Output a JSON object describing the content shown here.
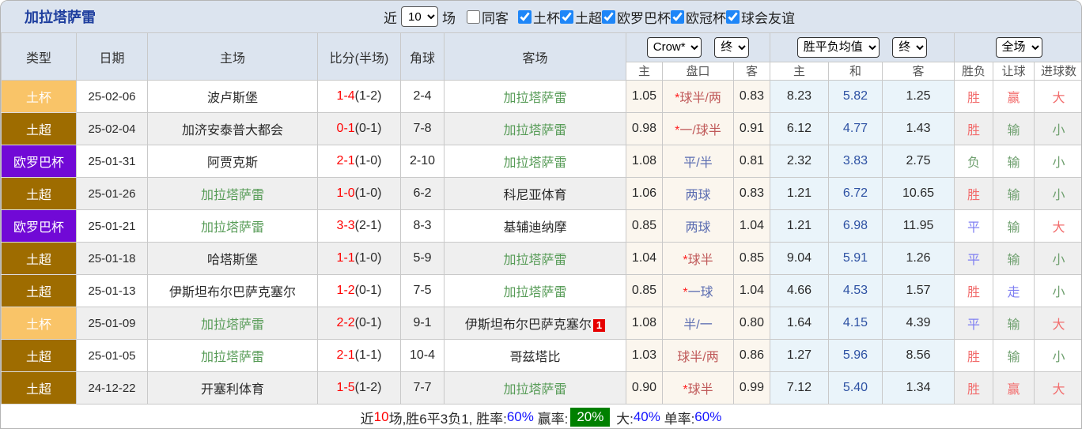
{
  "header": {
    "title": "加拉塔萨雷",
    "recent_label": "近",
    "recent_value": "10",
    "matches_label": "场",
    "same_venue": {
      "label": "同客",
      "checked": false
    },
    "leagues": [
      {
        "label": "土杯",
        "checked": true
      },
      {
        "label": "土超",
        "checked": true
      },
      {
        "label": "欧罗巴杯",
        "checked": true
      },
      {
        "label": "欧冠杯",
        "checked": true
      },
      {
        "label": "球会友谊",
        "checked": true
      }
    ]
  },
  "odds_panel": {
    "bookmaker": "Crow*",
    "bookmaker_time": "终",
    "avg_label": "胜平负均值",
    "avg_time": "终",
    "scope": "全场"
  },
  "table": {
    "left_headers": [
      "类型",
      "日期",
      "主场",
      "比分(半场)",
      "角球",
      "客场"
    ],
    "sub_headers": [
      "主",
      "盘口",
      "客",
      "主",
      "和",
      "客",
      "胜负",
      "让球",
      "进球数"
    ],
    "rows": [
      {
        "league": "土杯",
        "league_key": "cup",
        "date": "25-02-06",
        "home": {
          "name": "波卢斯堡",
          "green": false
        },
        "score": "1-4",
        "half": "(1-2)",
        "corners": "2-4",
        "away": {
          "name": "加拉塔萨雷",
          "green": true,
          "badge": null
        },
        "odds_home": "1.05",
        "handicap": {
          "star": true,
          "text": "球半/两",
          "color": "red"
        },
        "odds_away": "0.83",
        "avg_home": "8.23",
        "avg_draw": "5.82",
        "avg_away": "1.25",
        "result": {
          "text": "胜",
          "color": "red"
        },
        "handicap_result": {
          "text": "赢",
          "color": "red"
        },
        "goals": {
          "text": "大",
          "color": "red"
        }
      },
      {
        "league": "土超",
        "league_key": "super_lig",
        "date": "25-02-04",
        "home": {
          "name": "加济安泰普大都会",
          "green": false
        },
        "score": "0-1",
        "half": "(0-1)",
        "corners": "7-8",
        "away": {
          "name": "加拉塔萨雷",
          "green": true,
          "badge": null
        },
        "odds_home": "0.98",
        "handicap": {
          "star": true,
          "text": "一/球半",
          "color": "red"
        },
        "odds_away": "0.91",
        "avg_home": "6.12",
        "avg_draw": "4.77",
        "avg_away": "1.43",
        "result": {
          "text": "胜",
          "color": "red"
        },
        "handicap_result": {
          "text": "输",
          "color": "green"
        },
        "goals": {
          "text": "小",
          "color": "green"
        }
      },
      {
        "league": "欧罗巴杯",
        "league_key": "europa",
        "date": "25-01-31",
        "home": {
          "name": "阿贾克斯",
          "green": false
        },
        "score": "2-1",
        "half": "(1-0)",
        "corners": "2-10",
        "away": {
          "name": "加拉塔萨雷",
          "green": true,
          "badge": null
        },
        "odds_home": "1.08",
        "handicap": {
          "star": false,
          "text": "平/半",
          "color": "blue"
        },
        "odds_away": "0.81",
        "avg_home": "2.32",
        "avg_draw": "3.83",
        "avg_away": "2.75",
        "result": {
          "text": "负",
          "color": "green"
        },
        "handicap_result": {
          "text": "输",
          "color": "green"
        },
        "goals": {
          "text": "小",
          "color": "green"
        }
      },
      {
        "league": "土超",
        "league_key": "super_lig",
        "date": "25-01-26",
        "home": {
          "name": "加拉塔萨雷",
          "green": true
        },
        "score": "1-0",
        "half": "(1-0)",
        "corners": "6-2",
        "away": {
          "name": "科尼亚体育",
          "green": false,
          "badge": null
        },
        "odds_home": "1.06",
        "handicap": {
          "star": false,
          "text": "两球",
          "color": "blue"
        },
        "odds_away": "0.83",
        "avg_home": "1.21",
        "avg_draw": "6.72",
        "avg_away": "10.65",
        "result": {
          "text": "胜",
          "color": "red"
        },
        "handicap_result": {
          "text": "输",
          "color": "green"
        },
        "goals": {
          "text": "小",
          "color": "green"
        }
      },
      {
        "league": "欧罗巴杯",
        "league_key": "europa",
        "date": "25-01-21",
        "home": {
          "name": "加拉塔萨雷",
          "green": true
        },
        "score": "3-3",
        "half": "(2-1)",
        "corners": "8-3",
        "away": {
          "name": "基辅迪纳摩",
          "green": false,
          "badge": null
        },
        "odds_home": "0.85",
        "handicap": {
          "star": false,
          "text": "两球",
          "color": "blue"
        },
        "odds_away": "1.04",
        "avg_home": "1.21",
        "avg_draw": "6.98",
        "avg_away": "11.95",
        "result": {
          "text": "平",
          "color": "blue"
        },
        "handicap_result": {
          "text": "输",
          "color": "green"
        },
        "goals": {
          "text": "大",
          "color": "red"
        }
      },
      {
        "league": "土超",
        "league_key": "super_lig",
        "date": "25-01-18",
        "home": {
          "name": "哈塔斯堡",
          "green": false
        },
        "score": "1-1",
        "half": "(1-0)",
        "corners": "5-9",
        "away": {
          "name": "加拉塔萨雷",
          "green": true,
          "badge": null
        },
        "odds_home": "1.04",
        "handicap": {
          "star": true,
          "text": "球半",
          "color": "red"
        },
        "odds_away": "0.85",
        "avg_home": "9.04",
        "avg_draw": "5.91",
        "avg_away": "1.26",
        "result": {
          "text": "平",
          "color": "blue"
        },
        "handicap_result": {
          "text": "输",
          "color": "green"
        },
        "goals": {
          "text": "小",
          "color": "green"
        }
      },
      {
        "league": "土超",
        "league_key": "super_lig",
        "date": "25-01-13",
        "home": {
          "name": "伊斯坦布尔巴萨克塞尔",
          "green": false
        },
        "score": "1-2",
        "half": "(0-1)",
        "corners": "7-5",
        "away": {
          "name": "加拉塔萨雷",
          "green": true,
          "badge": null
        },
        "odds_home": "0.85",
        "handicap": {
          "star": true,
          "text": "一球",
          "color": "blue"
        },
        "odds_away": "1.04",
        "avg_home": "4.66",
        "avg_draw": "4.53",
        "avg_away": "1.57",
        "result": {
          "text": "胜",
          "color": "red"
        },
        "handicap_result": {
          "text": "走",
          "color": "blue"
        },
        "goals": {
          "text": "小",
          "color": "green"
        }
      },
      {
        "league": "土杯",
        "league_key": "cup",
        "date": "25-01-09",
        "home": {
          "name": "加拉塔萨雷",
          "green": true
        },
        "score": "2-2",
        "half": "(0-1)",
        "corners": "9-1",
        "away": {
          "name": "伊斯坦布尔巴萨克塞尔",
          "green": false,
          "badge": "1"
        },
        "odds_home": "1.08",
        "handicap": {
          "star": false,
          "text": "半/一",
          "color": "blue"
        },
        "odds_away": "0.80",
        "avg_home": "1.64",
        "avg_draw": "4.15",
        "avg_away": "4.39",
        "result": {
          "text": "平",
          "color": "blue"
        },
        "handicap_result": {
          "text": "输",
          "color": "green"
        },
        "goals": {
          "text": "大",
          "color": "red"
        }
      },
      {
        "league": "土超",
        "league_key": "super_lig",
        "date": "25-01-05",
        "home": {
          "name": "加拉塔萨雷",
          "green": true
        },
        "score": "2-1",
        "half": "(1-1)",
        "corners": "10-4",
        "away": {
          "name": "哥兹塔比",
          "green": false,
          "badge": null
        },
        "odds_home": "1.03",
        "handicap": {
          "star": false,
          "text": "球半/两",
          "color": "red"
        },
        "odds_away": "0.86",
        "avg_home": "1.27",
        "avg_draw": "5.96",
        "avg_away": "8.56",
        "result": {
          "text": "胜",
          "color": "red"
        },
        "handicap_result": {
          "text": "输",
          "color": "green"
        },
        "goals": {
          "text": "小",
          "color": "green"
        }
      },
      {
        "league": "土超",
        "league_key": "super_lig",
        "date": "24-12-22",
        "home": {
          "name": "开塞利体育",
          "green": false
        },
        "score": "1-5",
        "half": "(1-2)",
        "corners": "7-7",
        "away": {
          "name": "加拉塔萨雷",
          "green": true,
          "badge": null
        },
        "odds_home": "0.90",
        "handicap": {
          "star": true,
          "text": "球半",
          "color": "red"
        },
        "odds_away": "0.99",
        "avg_home": "7.12",
        "avg_draw": "5.40",
        "avg_away": "1.34",
        "result": {
          "text": "胜",
          "color": "red"
        },
        "handicap_result": {
          "text": "赢",
          "color": "red"
        },
        "goals": {
          "text": "大",
          "color": "red"
        }
      }
    ]
  },
  "summary": {
    "parts": [
      {
        "text": "近",
        "color": "text_dark"
      },
      {
        "text": "10",
        "color": "score_red"
      },
      {
        "text": "场,胜6平3负1, 胜率:",
        "color": "text_dark"
      },
      {
        "text": "60%",
        "color": "percent_blue"
      },
      {
        "text": " 赢率:",
        "color": "text_dark"
      },
      {
        "text": "20%",
        "color": "white",
        "bg": "win_rate_bg"
      },
      {
        "text": " 大:",
        "color": "text_dark"
      },
      {
        "text": "40%",
        "color": "percent_blue"
      },
      {
        "text": " 单率:",
        "color": "text_dark"
      },
      {
        "text": "60%",
        "color": "percent_blue"
      }
    ]
  },
  "colors": {
    "title": "#1E3E9E",
    "header_bg": "#DCE4EF",
    "checkbox_accent": "#1E86F8",
    "row_alt_bg": "#EFEFEF",
    "odds_bg": "#FBF6EE",
    "avg_bg": "#EAF4FA",
    "league": {
      "cup": "#F9C468",
      "super_lig": "#9E6C00",
      "europa": "#7109D6"
    },
    "score_red": "#FF0000",
    "team_green": "#569B56",
    "text_dark": "#2A2A2A",
    "star_red": "#FF2222",
    "handicap_red": "#C05A5A",
    "handicap_blue": "#5B6DB1",
    "avg_draw_blue": "#2D51A3",
    "result_red": "#F26D6D",
    "result_green": "#6FA06F",
    "result_blue": "#7F7FF2",
    "percent_blue": "#1414FF",
    "badge_red": "#E60000",
    "win_rate_bg": "#008000",
    "white": "#FFFFFF"
  }
}
